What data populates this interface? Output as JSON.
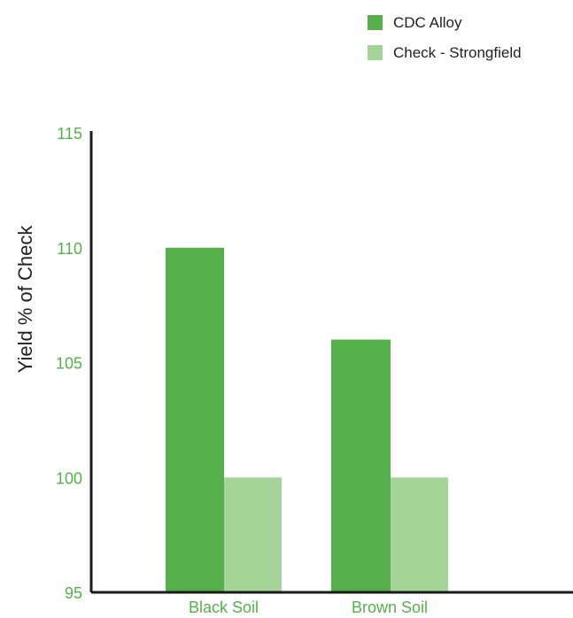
{
  "chart_data": {
    "type": "bar",
    "title": "",
    "xlabel": "",
    "ylabel": "Yield % of Check",
    "ylim": [
      95,
      115
    ],
    "yticks": [
      "95",
      "100",
      "105",
      "110",
      "115"
    ],
    "categories": [
      "Black Soil",
      "Brown Soil"
    ],
    "series": [
      {
        "name": "CDC Alloy",
        "values": [
          110,
          106
        ],
        "color": "#55b04b"
      },
      {
        "name": "Check - Strongfield",
        "values": [
          100,
          100
        ],
        "color": "#a5d498"
      }
    ],
    "grid": false,
    "legend_position": "top-right",
    "tick_color": "#55b04b",
    "axis_color": "#1a1a1a"
  }
}
